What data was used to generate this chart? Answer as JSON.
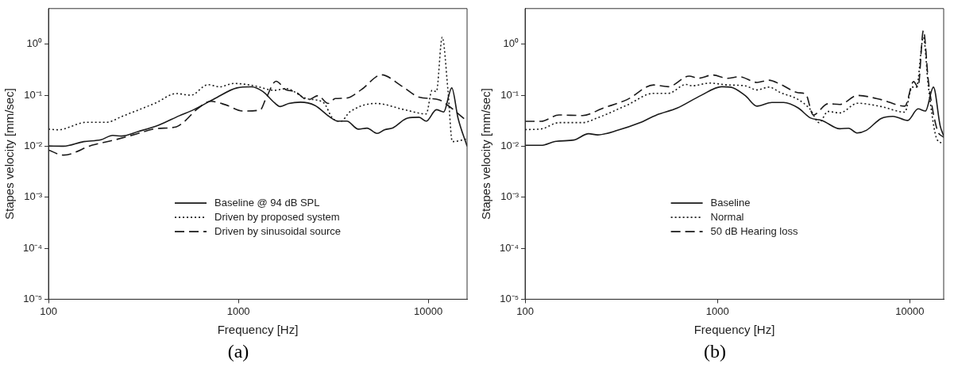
{
  "chart_data": [
    {
      "type": "line",
      "xlabel": "Frequency [Hz]",
      "ylabel": "Stapes velocity [mm/sec]",
      "annotations": [
        "(a)"
      ],
      "log": "xy",
      "legend": "center",
      "xlim": [
        100,
        16000
      ],
      "ylim": [
        1e-05,
        5
      ],
      "xticks": [
        100,
        1000,
        10000
      ],
      "yticks": [
        {
          "value": 1e-05,
          "label": "10⁻⁵"
        },
        {
          "value": 0.0001,
          "label": "10⁻⁴"
        },
        {
          "value": 0.001,
          "label": "10⁻³"
        },
        {
          "value": 0.01,
          "label": "10⁻²"
        },
        {
          "value": 0.1,
          "label": "10⁻¹"
        },
        {
          "value": 1,
          "label": "10⁰"
        }
      ],
      "marker": "none",
      "series": [
        {
          "name": "Baseline @ 94 dB SPL",
          "color": "#1a1a1a",
          "line_style": "solid",
          "x": [
            100,
            120,
            153,
            189,
            218,
            242,
            298,
            381,
            487,
            581,
            743,
            982,
            1170,
            1345,
            1549,
            1661,
            1843,
            2122,
            2529,
            3013,
            3349,
            3722,
            4285,
            4756,
            5378,
            5873,
            6519,
            7766,
            8935,
            9750,
            11030,
            12050,
            13290,
            14340,
            16000
          ],
          "values": [
            0.0101,
            0.01,
            0.0123,
            0.0134,
            0.0163,
            0.0158,
            0.0195,
            0.026,
            0.0394,
            0.052,
            0.0838,
            0.139,
            0.146,
            0.118,
            0.071,
            0.06,
            0.069,
            0.073,
            0.063,
            0.038,
            0.031,
            0.031,
            0.0216,
            0.0226,
            0.0178,
            0.021,
            0.023,
            0.0356,
            0.037,
            0.031,
            0.052,
            0.047,
            0.139,
            0.0356,
            0.01
          ]
        },
        {
          "name": "Driven by proposed system",
          "color": "#1a1a1a",
          "line_style": "dotted",
          "x": [
            100,
            112,
            159,
            203,
            242,
            368,
            471,
            561,
            692,
            796,
            948,
            1213,
            1549,
            1782,
            2280,
            2812,
            3126,
            3470,
            3857,
            5284,
            7500,
            9750,
            10470,
            11030,
            11840,
            12690,
            13380,
            16000
          ],
          "values": [
            0.0216,
            0.021,
            0.0295,
            0.0295,
            0.038,
            0.071,
            0.108,
            0.1,
            0.161,
            0.146,
            0.17,
            0.153,
            0.125,
            0.135,
            0.086,
            0.071,
            0.0356,
            0.031,
            0.047,
            0.069,
            0.052,
            0.043,
            0.125,
            0.118,
            1.37,
            0.125,
            0.0123,
            0.0139
          ]
        },
        {
          "name": "Driven by sinusoidal source",
          "color": "#1a1a1a",
          "line_style": "dashed",
          "x": [
            100,
            120,
            170,
            218,
            288,
            368,
            471,
            522,
            601,
            716,
            855,
            1055,
            1300,
            1396,
            1579,
            1782,
            1982,
            2321,
            2626,
            2965,
            3240,
            3722,
            4436,
            5667,
            7244,
            8935,
            11430,
            12690,
            16000
          ],
          "values": [
            0.0084,
            0.0067,
            0.0105,
            0.013,
            0.0172,
            0.0221,
            0.024,
            0.031,
            0.052,
            0.076,
            0.065,
            0.049,
            0.051,
            0.086,
            0.188,
            0.128,
            0.118,
            0.081,
            0.098,
            0.069,
            0.086,
            0.088,
            0.128,
            0.251,
            0.151,
            0.092,
            0.081,
            0.063,
            0.031
          ]
        }
      ]
    },
    {
      "type": "line",
      "xlabel": "Frequency [Hz]",
      "ylabel": "Stapes velocity [mm/sec]",
      "annotations": [
        "(b)"
      ],
      "log": "xy",
      "legend": "center",
      "xlim": [
        100,
        15000
      ],
      "ylim": [
        1e-05,
        5
      ],
      "xticks": [
        100,
        1000,
        10000
      ],
      "yticks": [
        {
          "value": 1e-05,
          "label": "10⁻⁵"
        },
        {
          "value": 0.0001,
          "label": "10⁻⁴"
        },
        {
          "value": 0.001,
          "label": "10⁻³"
        },
        {
          "value": 0.01,
          "label": "10⁻²"
        },
        {
          "value": 0.1,
          "label": "10⁻¹"
        },
        {
          "value": 1,
          "label": "10⁰"
        }
      ],
      "marker": "none",
      "series": [
        {
          "name": "Baseline",
          "color": "#1a1a1a",
          "line_style": "solid",
          "x": [
            100,
            121,
            145,
            179,
            214,
            238,
            305,
            390,
            483,
            618,
            821,
            1052,
            1170,
            1393,
            1606,
            1918,
            2210,
            2634,
            3035,
            3499,
            4325,
            4808,
            5310,
            5944,
            7093,
            8170,
            9750,
            11040,
            12060,
            13270,
            14390,
            15000
          ],
          "values": [
            0.0104,
            0.0104,
            0.0125,
            0.0132,
            0.0176,
            0.0167,
            0.0207,
            0.0283,
            0.0411,
            0.056,
            0.099,
            0.147,
            0.144,
            0.099,
            0.061,
            0.072,
            0.072,
            0.056,
            0.036,
            0.032,
            0.022,
            0.0225,
            0.0182,
            0.0205,
            0.035,
            0.0386,
            0.032,
            0.054,
            0.049,
            0.144,
            0.025,
            0.016
          ]
        },
        {
          "name": "Normal",
          "color": "#1a1a1a",
          "line_style": "dotted",
          "x": [
            100,
            121,
            150,
            199,
            238,
            339,
            466,
            556,
            687,
            738,
            913,
            1128,
            1393,
            1606,
            1850,
            2133,
            2634,
            3035,
            3376,
            3755,
            4325,
            5346,
            7093,
            9420,
            10280,
            10840,
            11770,
            12500,
            13900,
            15000
          ],
          "values": [
            0.0212,
            0.0218,
            0.029,
            0.029,
            0.036,
            0.064,
            0.109,
            0.109,
            0.163,
            0.153,
            0.173,
            0.159,
            0.153,
            0.127,
            0.144,
            0.112,
            0.082,
            0.053,
            0.029,
            0.048,
            0.045,
            0.0696,
            0.06,
            0.0465,
            0.144,
            0.144,
            1.37,
            0.144,
            0.0133,
            0.0115
          ]
        },
        {
          "name": "50 dB Hearing loss",
          "color": "#1a1a1a",
          "line_style": "dashed",
          "x": [
            100,
            121,
            150,
            199,
            255,
            339,
            466,
            556,
            713,
            793,
            944,
            1128,
            1300,
            1606,
            1850,
            2133,
            2634,
            2876,
            3147,
            3755,
            4325,
            5346,
            7093,
            9420,
            10470,
            11040,
            11770,
            12500,
            13900,
            15000
          ],
          "values": [
            0.0308,
            0.0308,
            0.041,
            0.04,
            0.056,
            0.082,
            0.159,
            0.147,
            0.237,
            0.215,
            0.249,
            0.215,
            0.231,
            0.178,
            0.197,
            0.163,
            0.112,
            0.105,
            0.041,
            0.068,
            0.066,
            0.099,
            0.082,
            0.061,
            0.185,
            0.144,
            1.87,
            0.185,
            0.0207,
            0.015
          ]
        }
      ]
    }
  ]
}
